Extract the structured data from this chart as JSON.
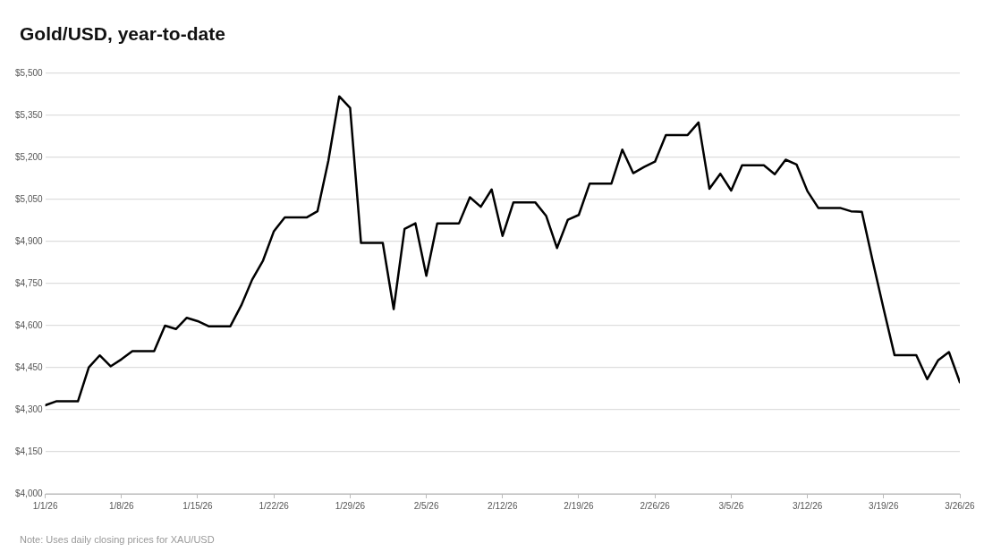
{
  "chart_data": {
    "type": "line",
    "title": "Gold/USD, year-to-date",
    "annotations": [
      "Note: Uses daily closing prices for XAU/USD"
    ],
    "x": [
      "--01-01",
      "--01-02",
      "--01-03",
      "--01-04",
      "--01-05",
      "--01-06",
      "--01-07",
      "--01-08",
      "--01-09",
      "--01-10",
      "--01-11",
      "--01-12",
      "--01-13",
      "--01-14",
      "--01-15",
      "--01-16",
      "--01-17",
      "--01-18",
      "--01-19",
      "--01-20",
      "--01-21",
      "--01-22",
      "--01-23",
      "--01-24",
      "--01-25",
      "--01-26",
      "--01-27",
      "--01-28",
      "--01-29",
      "--01-30",
      "--01-31",
      "--02-01",
      "--02-02",
      "--02-03",
      "--02-04",
      "--02-05",
      "--02-06",
      "--02-07",
      "--02-08",
      "--02-09",
      "--02-10",
      "--02-11",
      "--02-12",
      "--02-13",
      "--02-14",
      "--02-15",
      "--02-16",
      "--02-17",
      "--02-18",
      "--02-19",
      "--02-20",
      "--02-21",
      "--02-22",
      "--02-23",
      "--02-24",
      "--02-25",
      "--02-26",
      "--02-27",
      "--02-28",
      "--03-01",
      "--03-02",
      "--03-03",
      "--03-04",
      "--03-05",
      "--03-06",
      "--03-07",
      "--03-08",
      "--03-09",
      "--03-10",
      "--03-11",
      "--03-12",
      "--03-13",
      "--03-14",
      "--03-15",
      "--03-16",
      "--03-17",
      "--03-18",
      "--03-19",
      "--03-20",
      "--03-21",
      "--03-22",
      "--03-23",
      "--03-24",
      "--03-25",
      "--03-26"
    ],
    "series": [
      {
        "color": "#000000",
        "values": [
          4316,
          4330,
          4330,
          4330,
          4451,
          4494,
          4455,
          4480,
          4509,
          4509,
          4509,
          4600,
          4588,
          4628,
          4616,
          4598,
          4598,
          4598,
          4672,
          4764,
          4832,
          4937,
          4986,
          4986,
          4986,
          5008,
          5188,
          5418,
          5377,
          4895,
          4895,
          4895,
          4659,
          4945,
          4965,
          4778,
          4965,
          4965,
          4965,
          5058,
          5024,
          5086,
          4920,
          5040,
          5040,
          5040,
          4992,
          4877,
          4978,
          4995,
          5107,
          5107,
          5107,
          5228,
          5144,
          5166,
          5185,
          5280,
          5280,
          5280,
          5325,
          5088,
          5142,
          5082,
          5172,
          5172,
          5172,
          5140,
          5192,
          5175,
          5080,
          5020,
          5020,
          5020,
          5008,
          5006,
          4830,
          4660,
          4495,
          4495,
          4495,
          4409,
          4476,
          4506,
          4398
        ]
      }
    ],
    "xlim": [
      "--01-01",
      "--03-26"
    ],
    "xticks": [
      {
        "value": "--01-01",
        "label": "1/1/26"
      },
      {
        "value": "--01-08",
        "label": "1/8/26"
      },
      {
        "value": "--01-15",
        "label": "1/15/26"
      },
      {
        "value": "--01-22",
        "label": "1/22/26"
      },
      {
        "value": "--01-29",
        "label": "1/29/26"
      },
      {
        "value": "--02-05",
        "label": "2/5/26"
      },
      {
        "value": "--02-12",
        "label": "2/12/26"
      },
      {
        "value": "--02-19",
        "label": "2/19/26"
      },
      {
        "value": "--02-26",
        "label": "2/26/26"
      },
      {
        "value": "--03-05",
        "label": "3/5/26"
      },
      {
        "value": "--03-12",
        "label": "3/12/26"
      },
      {
        "value": "--03-19",
        "label": "3/19/26"
      },
      {
        "value": "--03-26",
        "label": "3/26/26"
      }
    ],
    "ylim": [
      4000,
      5500
    ],
    "yticks": [
      {
        "value": 4000,
        "label": "$4,000"
      },
      {
        "value": 4150,
        "label": "$4,150"
      },
      {
        "value": 4300,
        "label": "$4,300"
      },
      {
        "value": 4450,
        "label": "$4,450"
      },
      {
        "value": 4600,
        "label": "$4,600"
      },
      {
        "value": 4750,
        "label": "$4,750"
      },
      {
        "value": 4900,
        "label": "$4,900"
      },
      {
        "value": 5050,
        "label": "$5,050"
      },
      {
        "value": 5200,
        "label": "$5,200"
      },
      {
        "value": 5350,
        "label": "$5,350"
      },
      {
        "value": 5500,
        "label": "$5,500"
      }
    ],
    "grid": "y",
    "legend": false,
    "marker": "none",
    "line_style": "solid"
  }
}
